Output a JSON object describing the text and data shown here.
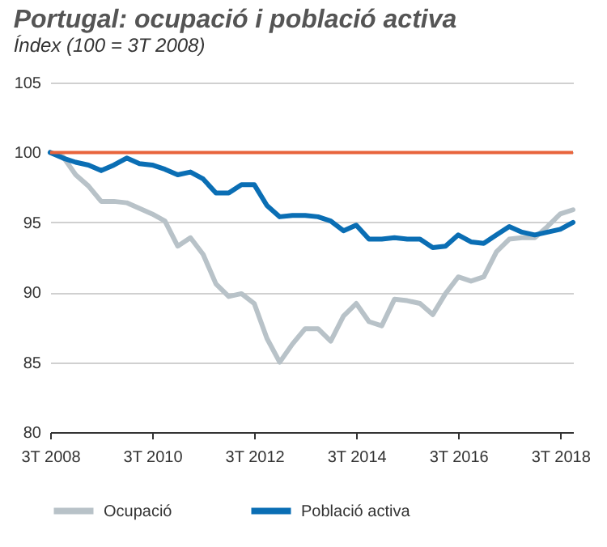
{
  "chart_data": {
    "type": "line",
    "title": "Portugal: ocupació i població activa",
    "subtitle": "Índex (100 = 3T 2008)",
    "categories": [
      "3T 2008",
      null,
      null,
      null,
      null,
      null,
      null,
      null,
      "3T 2010",
      null,
      null,
      null,
      null,
      null,
      null,
      null,
      "3T 2012",
      null,
      null,
      null,
      null,
      null,
      null,
      null,
      "3T 2014",
      null,
      null,
      null,
      null,
      null,
      null,
      null,
      "3T 2016",
      null,
      null,
      null,
      null,
      null,
      null,
      null,
      "3T 2018",
      null
    ],
    "series": [
      {
        "name": "Ocupació",
        "color": "#b8c2c8",
        "values": [
          100,
          99.7,
          98.4,
          97.6,
          96.5,
          96.5,
          96.4,
          96.0,
          95.6,
          95.1,
          93.3,
          93.9,
          92.7,
          90.6,
          89.7,
          89.9,
          89.2,
          86.7,
          85.0,
          86.3,
          87.4,
          87.4,
          86.5,
          88.3,
          89.2,
          87.9,
          87.6,
          89.5,
          89.4,
          89.2,
          88.4,
          89.9,
          91.1,
          90.8,
          91.1,
          92.9,
          93.8,
          93.9,
          93.9,
          94.7,
          95.6,
          95.9
        ]
      },
      {
        "name": "Població activa",
        "color": "#0a6eb4",
        "values": [
          100,
          99.6,
          99.3,
          99.1,
          98.7,
          99.1,
          99.6,
          99.2,
          99.1,
          98.8,
          98.4,
          98.6,
          98.1,
          97.1,
          97.1,
          97.7,
          97.7,
          96.2,
          95.4,
          95.5,
          95.5,
          95.4,
          95.1,
          94.4,
          94.8,
          93.8,
          93.8,
          93.9,
          93.8,
          93.8,
          93.2,
          93.3,
          94.1,
          93.6,
          93.5,
          94.1,
          94.7,
          94.3,
          94.1,
          94.3,
          94.5,
          95.0
        ]
      }
    ],
    "ylim": [
      80,
      105
    ],
    "yticks": [
      80,
      85,
      90,
      95,
      100,
      105
    ],
    "ref_lines": [
      {
        "axis": "y",
        "value": 100,
        "color": "#e8643c"
      }
    ],
    "grid": "y",
    "legend": "bottom",
    "marker": "none",
    "line_style": "solid"
  }
}
